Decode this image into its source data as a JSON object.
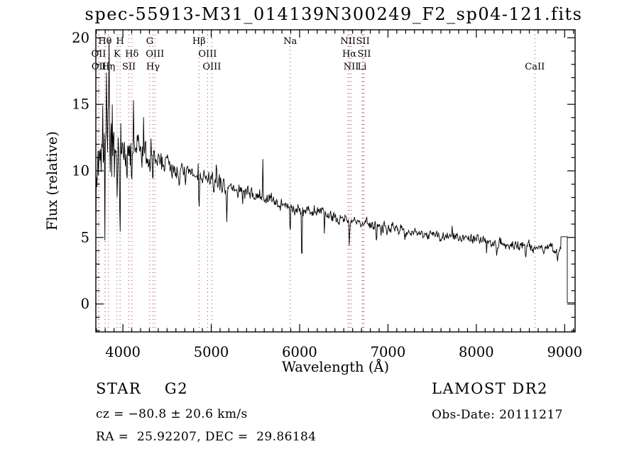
{
  "window": {
    "background": "#ffffff",
    "text_color": "#000000"
  },
  "chart_data": {
    "type": "line",
    "title": "spec-55913-M31_014139N300249_F2_sp04-121.fits",
    "xlabel": "Wavelength (Å)",
    "ylabel": "Flux (relative)",
    "xlim": [
      3694,
      9118
    ],
    "ylim": [
      -2.1,
      20.6
    ],
    "x_ticks_major": [
      4000,
      5000,
      6000,
      7000,
      8000,
      9000
    ],
    "x_tick_labels": [
      "4000",
      "5000",
      "6000",
      "7000",
      "8000",
      "9000"
    ],
    "x_minor_step": 100,
    "y_ticks_major": [
      0,
      5,
      10,
      15,
      20
    ],
    "y_tick_labels": [
      "0",
      "5",
      "10",
      "15",
      "20"
    ],
    "y_minor_step": 1,
    "grid": false,
    "line_color": "#000000",
    "marker_line_color": "#993333",
    "spectral_lines": [
      {
        "label": "OII",
        "wl": 3726.0,
        "row": 2
      },
      {
        "label": "OII",
        "wl": 3728.8,
        "row": 3
      },
      {
        "label": "Hθ",
        "wl": 3797.9,
        "row": 1
      },
      {
        "label": "Hη",
        "wl": 3835.4,
        "row": 3
      },
      {
        "label": "K",
        "wl": 3933.7,
        "row": 2
      },
      {
        "label": "H",
        "wl": 3968.5,
        "row": 1
      },
      {
        "label": "SII",
        "wl": 4068.6,
        "row": 3
      },
      {
        "label": "Hδ",
        "wl": 4101.7,
        "row": 2
      },
      {
        "label": "G",
        "wl": 4304.4,
        "row": 1
      },
      {
        "label": "Hγ",
        "wl": 4340.5,
        "row": 3
      },
      {
        "label": "OIII",
        "wl": 4363.2,
        "row": 2
      },
      {
        "label": "Hβ",
        "wl": 4861.3,
        "row": 1
      },
      {
        "label": "OIII",
        "wl": 4959.0,
        "row": 2
      },
      {
        "label": "OIII",
        "wl": 5006.8,
        "row": 3
      },
      {
        "label": "Na",
        "wl": 5893.0,
        "row": 1
      },
      {
        "label": "NII",
        "wl": 6548.1,
        "row": 1
      },
      {
        "label": "Hα",
        "wl": 6562.8,
        "row": 2
      },
      {
        "label": "NII",
        "wl": 6583.5,
        "row": 3
      },
      {
        "label": "Li",
        "wl": 6707.8,
        "row": 3
      },
      {
        "label": "SII",
        "wl": 6716.4,
        "row": 1
      },
      {
        "label": "SII",
        "wl": 6730.8,
        "row": 2
      },
      {
        "label": "CaII",
        "wl": 8662.1,
        "row": 3
      }
    ],
    "continuum": [
      [
        3694,
        9.5
      ],
      [
        3720,
        10.6
      ],
      [
        3760,
        11.4
      ],
      [
        3800,
        11.8
      ],
      [
        3850,
        12.0
      ],
      [
        3900,
        12.1
      ],
      [
        3950,
        11.2
      ],
      [
        4000,
        11.1
      ],
      [
        4060,
        11.0
      ],
      [
        4120,
        11.4
      ],
      [
        4180,
        11.7
      ],
      [
        4240,
        11.5
      ],
      [
        4300,
        11.0
      ],
      [
        4360,
        10.8
      ],
      [
        4440,
        10.8
      ],
      [
        4520,
        10.4
      ],
      [
        4620,
        10.0
      ],
      [
        4720,
        9.8
      ],
      [
        4820,
        9.6
      ],
      [
        4920,
        9.4
      ],
      [
        5020,
        9.2
      ],
      [
        5120,
        9.0
      ],
      [
        5220,
        8.7
      ],
      [
        5320,
        8.5
      ],
      [
        5420,
        8.3
      ],
      [
        5520,
        8.1
      ],
      [
        5620,
        7.9
      ],
      [
        5720,
        7.7
      ],
      [
        5820,
        7.5
      ],
      [
        5920,
        7.25
      ],
      [
        6020,
        7.1
      ],
      [
        6120,
        7.0
      ],
      [
        6220,
        6.8
      ],
      [
        6320,
        6.65
      ],
      [
        6420,
        6.5
      ],
      [
        6520,
        6.35
      ],
      [
        6620,
        6.2
      ],
      [
        6720,
        6.1
      ],
      [
        6820,
        5.95
      ],
      [
        6920,
        5.85
      ],
      [
        7020,
        5.75
      ],
      [
        7220,
        5.5
      ],
      [
        7420,
        5.3
      ],
      [
        7620,
        5.1
      ],
      [
        7820,
        5.0
      ],
      [
        8020,
        4.85
      ],
      [
        8220,
        4.6
      ],
      [
        8420,
        4.45
      ],
      [
        8620,
        4.35
      ],
      [
        8820,
        4.2
      ],
      [
        8958,
        4.0
      ]
    ],
    "noise_profile": [
      [
        3694,
        4.0
      ],
      [
        3800,
        3.6
      ],
      [
        3880,
        2.8
      ],
      [
        3960,
        2.0
      ],
      [
        4060,
        1.7
      ],
      [
        4200,
        1.4
      ],
      [
        4400,
        1.1
      ],
      [
        4700,
        0.9
      ],
      [
        5100,
        0.75
      ],
      [
        5600,
        0.62
      ],
      [
        6100,
        0.55
      ],
      [
        6700,
        0.5
      ],
      [
        7300,
        0.45
      ],
      [
        8000,
        0.42
      ],
      [
        8600,
        0.46
      ],
      [
        9040,
        0.5
      ]
    ],
    "features": [
      {
        "wl": 3933.7,
        "amp": -4.5,
        "width": 6
      },
      {
        "wl": 3968.5,
        "amp": -3.8,
        "width": 6
      },
      {
        "wl": 4101.7,
        "amp": -2.8,
        "width": 5
      },
      {
        "wl": 4304.4,
        "amp": -1.8,
        "width": 6
      },
      {
        "wl": 4340.5,
        "amp": -2.3,
        "width": 5
      },
      {
        "wl": 4861.3,
        "amp": -2.7,
        "width": 5
      },
      {
        "wl": 5175.0,
        "amp": -1.3,
        "width": 8
      },
      {
        "wl": 5893.0,
        "amp": -2.2,
        "width": 6
      },
      {
        "wl": 6025.0,
        "amp": -4.9,
        "width": 4
      },
      {
        "wl": 6280.0,
        "amp": -1.1,
        "width": 4
      },
      {
        "wl": 6562.8,
        "amp": -1.8,
        "width": 5
      },
      {
        "wl": 6870.0,
        "amp": -1.1,
        "width": 7
      },
      {
        "wl": 7190.0,
        "amp": -0.7,
        "width": 6
      },
      {
        "wl": 7600.0,
        "amp": -0.8,
        "width": 8
      },
      {
        "wl": 8230.0,
        "amp": -0.7,
        "width": 5
      },
      {
        "wl": 8560.0,
        "amp": -0.7,
        "width": 6
      },
      {
        "wl": 8920.0,
        "amp": -0.9,
        "width": 6
      },
      {
        "wl": 3745,
        "amp": 4.6,
        "width": 3
      },
      {
        "wl": 3772,
        "amp": 5.2,
        "width": 3
      },
      {
        "wl": 3812,
        "amp": 5.4,
        "width": 3
      },
      {
        "wl": 3843,
        "amp": 5.0,
        "width": 3
      },
      {
        "wl": 3881,
        "amp": 4.2,
        "width": 3
      },
      {
        "wl": 3757,
        "amp": -4.5,
        "width": 3
      },
      {
        "wl": 3796,
        "amp": -5.5,
        "width": 3
      },
      {
        "wl": 3858,
        "amp": -5.0,
        "width": 3
      },
      {
        "wl": 3906,
        "amp": -6.0,
        "width": 3
      },
      {
        "wl": 4045,
        "amp": -3.5,
        "width": 3
      },
      {
        "wl": 4120,
        "amp": 3.2,
        "width": 3
      },
      {
        "wl": 4235,
        "amp": 3.0,
        "width": 3
      },
      {
        "wl": 5582,
        "amp": 4.2,
        "width": 3
      }
    ],
    "end_plateau": {
      "start": 8958,
      "end": 9030,
      "flux": 5.05
    },
    "end_drop": {
      "start": 9030,
      "end": 9118,
      "flux": 0.1
    },
    "noise_seed": 7
  },
  "footer": {
    "left": {
      "class_line": "STAR    G2",
      "cz_line": "cz = −80.8 ± 20.6 km/s",
      "coord_line": "RA =  25.92207, DEC =  29.86184"
    },
    "right": {
      "survey": "LAMOST DR2",
      "obs_line": "Obs-Date: 20111217"
    }
  }
}
